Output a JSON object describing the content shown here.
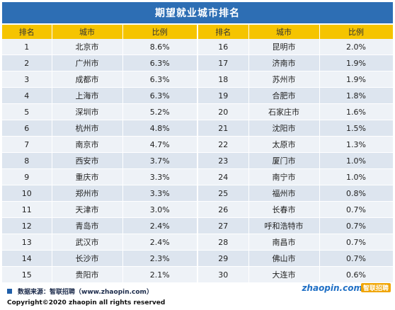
{
  "title": "期望就业城市排名",
  "headers": [
    "排名",
    "城市",
    "比例",
    "排名",
    "城市",
    "比例"
  ],
  "rows": [
    [
      "1",
      "北京市",
      "8.6%",
      "16",
      "昆明市",
      "2.0%"
    ],
    [
      "2",
      "广州市",
      "6.3%",
      "17",
      "济南市",
      "1.9%"
    ],
    [
      "3",
      "成都市",
      "6.3%",
      "18",
      "苏州市",
      "1.9%"
    ],
    [
      "4",
      "上海市",
      "6.3%",
      "19",
      "合肥市",
      "1.8%"
    ],
    [
      "5",
      "深圳市",
      "5.2%",
      "20",
      "石家庄市",
      "1.6%"
    ],
    [
      "6",
      "杭州市",
      "4.8%",
      "21",
      "沈阳市",
      "1.5%"
    ],
    [
      "7",
      "南京市",
      "4.7%",
      "22",
      "太原市",
      "1.3%"
    ],
    [
      "8",
      "西安市",
      "3.7%",
      "23",
      "厦门市",
      "1.0%"
    ],
    [
      "9",
      "重庆市",
      "3.3%",
      "24",
      "南宁市",
      "1.0%"
    ],
    [
      "10",
      "郑州市",
      "3.3%",
      "25",
      "福州市",
      "0.8%"
    ],
    [
      "11",
      "天津市",
      "3.0%",
      "26",
      "长春市",
      "0.7%"
    ],
    [
      "12",
      "青岛市",
      "2.4%",
      "27",
      "呼和浩特市",
      "0.7%"
    ],
    [
      "13",
      "武汉市",
      "2.4%",
      "28",
      "南昌市",
      "0.7%"
    ],
    [
      "14",
      "长沙市",
      "2.3%",
      "29",
      "佛山市",
      "0.7%"
    ],
    [
      "15",
      "贵阳市",
      "2.1%",
      "30",
      "大连市",
      "0.6%"
    ]
  ],
  "footer": {
    "source": "数据来源：智联招聘（www.zhaopin.com）",
    "copyright": "Copyright©2020 zhaopin all rights reserved",
    "logo_text": "zhaopin.com",
    "logo_cn": "智联招聘"
  },
  "colors": {
    "title_bg": "#2d6eb4",
    "header_bg": "#f5c400",
    "row_light": "#eef2f7",
    "row_dark": "#dde5ef"
  }
}
